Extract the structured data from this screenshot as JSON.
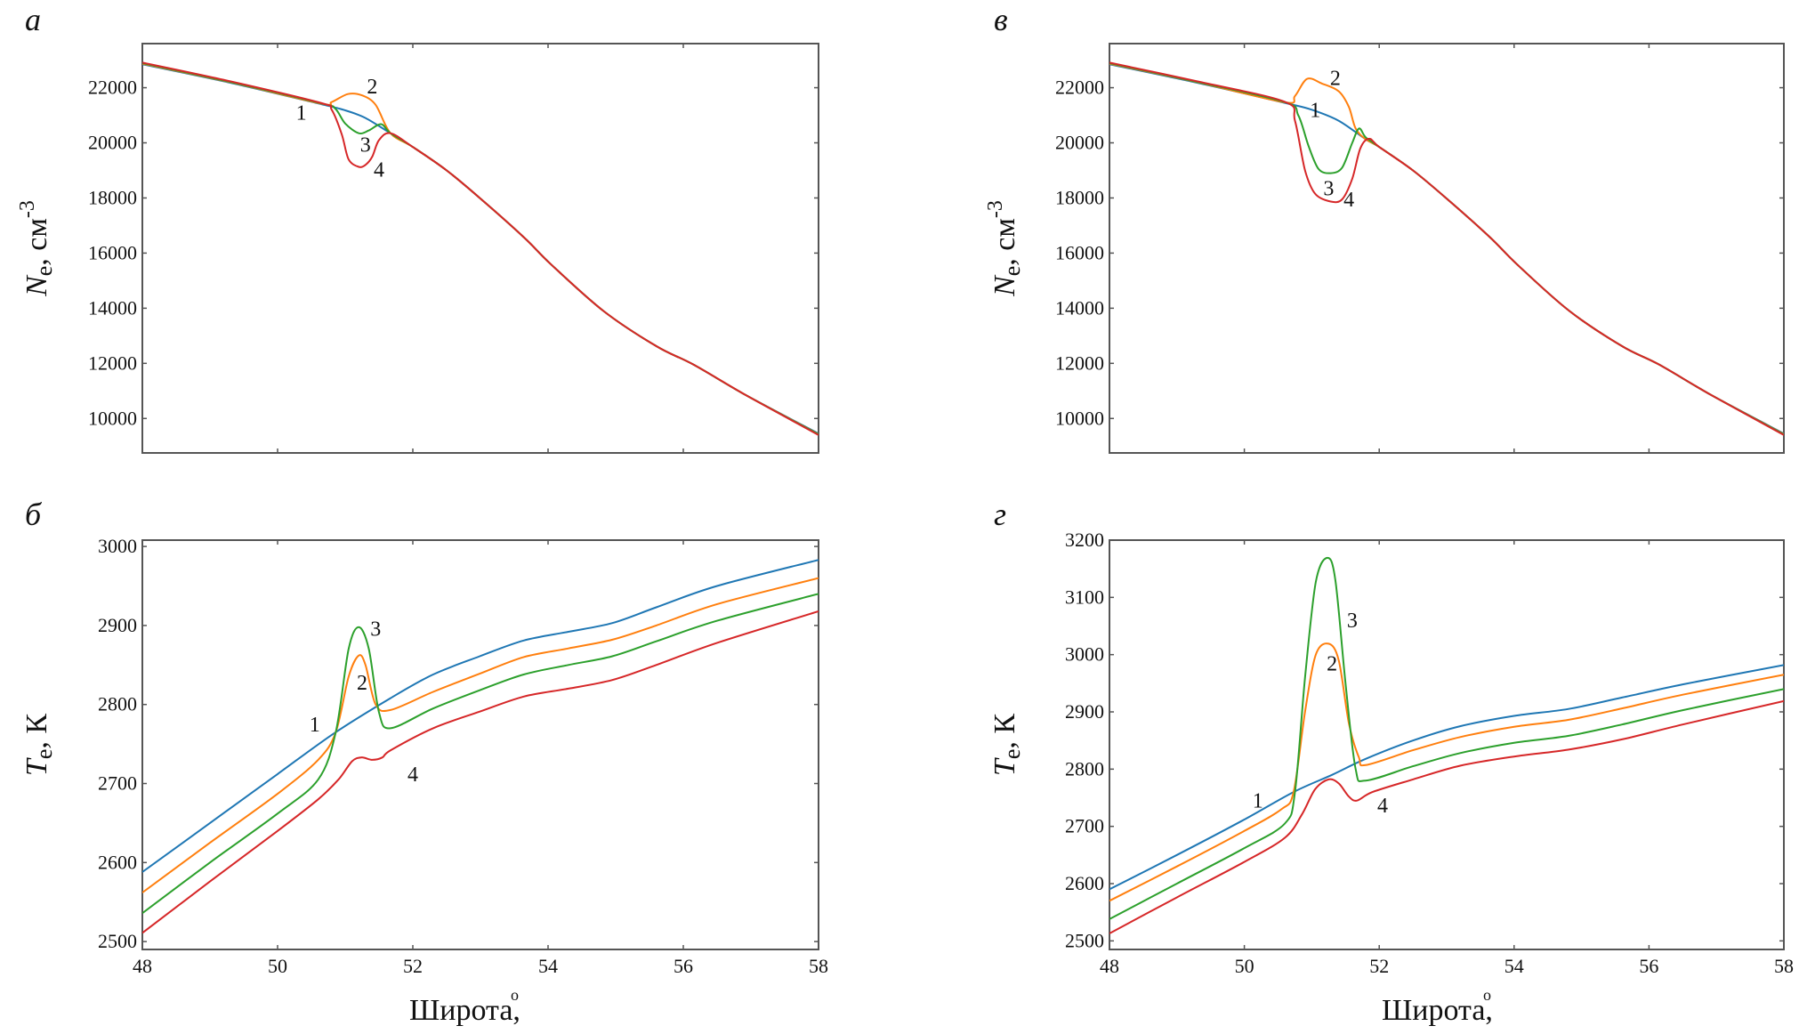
{
  "figure": {
    "xlabel_text": "Широта,",
    "xlabel_degree": "o"
  },
  "series_colors": {
    "1": "#1f77b4",
    "2": "#ff7f0e",
    "3": "#2ca02c",
    "4": "#d62728"
  },
  "chart_data": [
    {
      "id": "a",
      "panel_letter": "а",
      "type": "line",
      "title": "",
      "xlabel": "",
      "ylabel_symbol": "N",
      "ylabel_sub": "e",
      "ylabel_unit": ", см",
      "ylabel_sup": "-3",
      "xlim": [
        48,
        58
      ],
      "ylim": [
        8750,
        23600
      ],
      "xticks": [
        48,
        50,
        52,
        54,
        56,
        58
      ],
      "xtick_labels_shown": false,
      "yticks": [
        10000,
        12000,
        14000,
        16000,
        18000,
        20000,
        22000
      ],
      "ytick_labels": [
        "10000",
        "12000",
        "14000",
        "16000",
        "18000",
        "20000",
        "22000"
      ],
      "grid": false,
      "series": [
        {
          "name": "1",
          "x": [
            48,
            49.3,
            50.65,
            51.0,
            51.3,
            51.67,
            52.0,
            52.5,
            52.99,
            53.64,
            54.04,
            54.82,
            55.61,
            56.14,
            56.93,
            58
          ],
          "y": [
            22850,
            22180,
            21400,
            21180,
            20900,
            20350,
            19850,
            19000,
            18000,
            16580,
            15600,
            13900,
            12610,
            11970,
            10840,
            9450
          ]
        },
        {
          "name": "2",
          "x": [
            48,
            49.3,
            50.65,
            50.8,
            51.04,
            51.25,
            51.45,
            51.67,
            52.0,
            52.5,
            52.99,
            53.64,
            54.04,
            54.82,
            55.61,
            56.14,
            56.93,
            58
          ],
          "y": [
            22870,
            22200,
            21420,
            21480,
            21770,
            21720,
            21380,
            20350,
            19850,
            19000,
            18000,
            16580,
            15600,
            13900,
            12610,
            11970,
            10840,
            9430
          ]
        },
        {
          "name": "3",
          "x": [
            48,
            49.3,
            50.65,
            50.85,
            51.0,
            51.2,
            51.35,
            51.53,
            51.67,
            52.0,
            52.5,
            52.99,
            53.64,
            54.04,
            54.82,
            55.61,
            56.14,
            56.93,
            58
          ],
          "y": [
            22890,
            22210,
            21430,
            21250,
            20700,
            20350,
            20450,
            20680,
            20350,
            19850,
            19000,
            18000,
            16580,
            15600,
            13900,
            12610,
            11970,
            10840,
            9420
          ]
        },
        {
          "name": "4",
          "x": [
            48,
            49.3,
            50.65,
            50.8,
            50.95,
            51.05,
            51.2,
            51.3,
            51.4,
            51.5,
            51.67,
            52.0,
            52.5,
            52.99,
            53.64,
            54.04,
            54.82,
            55.61,
            56.14,
            56.93,
            58
          ],
          "y": [
            22910,
            22230,
            21440,
            21200,
            20300,
            19400,
            19130,
            19200,
            19500,
            20100,
            20350,
            19850,
            19000,
            18000,
            16580,
            15600,
            13900,
            12610,
            11970,
            10840,
            9400
          ]
        }
      ],
      "annotations": [
        {
          "text": "1",
          "x": 50.35,
          "y": 21100
        },
        {
          "text": "2",
          "x": 51.4,
          "y": 22050
        },
        {
          "text": "3",
          "x": 51.3,
          "y": 19940
        },
        {
          "text": "4",
          "x": 51.5,
          "y": 19030
        }
      ]
    },
    {
      "id": "b",
      "panel_letter": "б",
      "type": "line",
      "title": "",
      "xlabel": "Широта, o",
      "ylabel_symbol": "T",
      "ylabel_sub": "e",
      "ylabel_unit": ", К",
      "ylabel_sup": "",
      "xlim": [
        48,
        58
      ],
      "ylim": [
        2490,
        3008
      ],
      "xticks": [
        48,
        50,
        52,
        54,
        56,
        58
      ],
      "xtick_labels": [
        "48",
        "50",
        "52",
        "54",
        "56",
        "58"
      ],
      "xtick_labels_shown": true,
      "yticks": [
        2500,
        2600,
        2700,
        2800,
        2900,
        3000
      ],
      "ytick_labels": [
        "2500",
        "2600",
        "2700",
        "2800",
        "2900",
        "3000"
      ],
      "grid": false,
      "series": [
        {
          "name": "1",
          "x": [
            48,
            49,
            50,
            50.86,
            51.67,
            52.3,
            52.99,
            53.64,
            54.3,
            54.95,
            55.6,
            56.5,
            58
          ],
          "y": [
            2588,
            2650,
            2712,
            2765,
            2808,
            2838,
            2861,
            2881,
            2892,
            2903,
            2923,
            2950,
            2983
          ]
        },
        {
          "name": "2",
          "x": [
            48,
            49,
            50,
            50.6,
            50.86,
            51.05,
            51.2,
            51.3,
            51.45,
            51.67,
            52.3,
            52.99,
            53.64,
            54.3,
            54.95,
            55.6,
            56.5,
            58
          ],
          "y": [
            2562,
            2625,
            2687,
            2730,
            2765,
            2835,
            2862,
            2850,
            2800,
            2793,
            2816,
            2839,
            2860,
            2871,
            2882,
            2900,
            2927,
            2960
          ]
        },
        {
          "name": "3",
          "x": [
            48,
            49,
            50,
            50.6,
            50.86,
            51.05,
            51.2,
            51.35,
            51.5,
            51.67,
            52.3,
            52.99,
            53.64,
            54.3,
            54.95,
            55.6,
            56.5,
            58
          ],
          "y": [
            2536,
            2600,
            2662,
            2705,
            2765,
            2870,
            2898,
            2870,
            2790,
            2770,
            2795,
            2818,
            2838,
            2850,
            2861,
            2880,
            2906,
            2940
          ]
        },
        {
          "name": "4",
          "x": [
            48,
            49,
            50,
            50.6,
            50.9,
            51.1,
            51.24,
            51.4,
            51.55,
            51.67,
            52.3,
            52.99,
            53.64,
            54.3,
            54.95,
            55.6,
            56.5,
            58
          ],
          "y": [
            2511,
            2576,
            2640,
            2680,
            2705,
            2728,
            2733,
            2730,
            2733,
            2742,
            2770,
            2791,
            2810,
            2820,
            2831,
            2850,
            2878,
            2918
          ]
        }
      ],
      "annotations": [
        {
          "text": "1",
          "x": 50.55,
          "y": 2775
        },
        {
          "text": "2",
          "x": 51.25,
          "y": 2828
        },
        {
          "text": "3",
          "x": 51.45,
          "y": 2896
        },
        {
          "text": "4",
          "x": 52.0,
          "y": 2712
        }
      ]
    },
    {
      "id": "v",
      "panel_letter": "в",
      "type": "line",
      "title": "",
      "xlabel": "",
      "ylabel_symbol": "N",
      "ylabel_sub": "e",
      "ylabel_unit": ", см",
      "ylabel_sup": "-3",
      "xlim": [
        48,
        58
      ],
      "ylim": [
        8750,
        23600
      ],
      "xticks": [
        48,
        50,
        52,
        54,
        56,
        58
      ],
      "xtick_labels_shown": false,
      "yticks": [
        10000,
        12000,
        14000,
        16000,
        18000,
        20000,
        22000
      ],
      "ytick_labels": [
        "10000",
        "12000",
        "14000",
        "16000",
        "18000",
        "20000",
        "22000"
      ],
      "grid": false,
      "series": [
        {
          "name": "1",
          "x": [
            48,
            49.3,
            50.6,
            51.0,
            51.4,
            51.8,
            52.0,
            52.5,
            52.99,
            53.64,
            54.04,
            54.82,
            55.61,
            56.14,
            56.93,
            58
          ],
          "y": [
            22850,
            22180,
            21450,
            21200,
            20800,
            20130,
            19850,
            19000,
            18000,
            16580,
            15600,
            13900,
            12610,
            11970,
            10840,
            9450
          ]
        },
        {
          "name": "2",
          "x": [
            48,
            49.3,
            50.6,
            50.75,
            50.93,
            51.15,
            51.4,
            51.55,
            51.65,
            51.8,
            52.0,
            52.5,
            52.99,
            53.64,
            54.04,
            54.82,
            55.61,
            56.14,
            56.93,
            58
          ],
          "y": [
            22870,
            22200,
            21470,
            21700,
            22320,
            22150,
            21870,
            21300,
            20520,
            20130,
            19850,
            19000,
            18000,
            16580,
            15600,
            13900,
            12610,
            11970,
            10840,
            9430
          ]
        },
        {
          "name": "3",
          "x": [
            48,
            49.3,
            50.6,
            50.8,
            50.95,
            51.1,
            51.28,
            51.45,
            51.6,
            51.7,
            51.8,
            52.0,
            52.5,
            52.99,
            53.64,
            54.04,
            54.82,
            55.61,
            56.14,
            56.93,
            58
          ],
          "y": [
            22890,
            22210,
            21480,
            21000,
            19900,
            19050,
            18900,
            19100,
            20000,
            20520,
            20200,
            19850,
            19000,
            18000,
            16580,
            15600,
            13900,
            12610,
            11970,
            10840,
            9420
          ]
        },
        {
          "name": "4",
          "x": [
            48,
            49.3,
            50.6,
            50.75,
            50.9,
            51.05,
            51.28,
            51.45,
            51.6,
            51.72,
            51.85,
            52.0,
            52.5,
            52.99,
            53.64,
            54.04,
            54.82,
            55.61,
            56.14,
            56.93,
            58
          ],
          "y": [
            22910,
            22230,
            21490,
            20800,
            19000,
            18150,
            17870,
            17950,
            18700,
            19800,
            20150,
            19850,
            19000,
            18000,
            16580,
            15600,
            13900,
            12610,
            11970,
            10840,
            9400
          ]
        }
      ],
      "annotations": [
        {
          "text": "1",
          "x": 51.05,
          "y": 21200
        },
        {
          "text": "2",
          "x": 51.35,
          "y": 22350
        },
        {
          "text": "3",
          "x": 51.25,
          "y": 18350
        },
        {
          "text": "4",
          "x": 51.55,
          "y": 17950
        }
      ]
    },
    {
      "id": "g",
      "panel_letter": "г",
      "type": "line",
      "title": "",
      "xlabel": "Широта, o",
      "ylabel_symbol": "T",
      "ylabel_sub": "e",
      "ylabel_unit": ", К",
      "ylabel_sup": "",
      "xlim": [
        48,
        58
      ],
      "ylim": [
        2485,
        3200
      ],
      "xticks": [
        48,
        50,
        52,
        54,
        56,
        58
      ],
      "xtick_labels": [
        "48",
        "50",
        "52",
        "54",
        "56",
        "58"
      ],
      "xtick_labels_shown": true,
      "yticks": [
        2500,
        2600,
        2700,
        2800,
        2900,
        3000,
        3100,
        3200
      ],
      "ytick_labels": [
        "2500",
        "2600",
        "2700",
        "2800",
        "2900",
        "3000",
        "3100",
        "3200"
      ],
      "grid": false,
      "series": [
        {
          "name": "1",
          "x": [
            48,
            49,
            50,
            50.73,
            51.3,
            51.8,
            52.5,
            53.2,
            54.0,
            54.8,
            55.6,
            56.5,
            58
          ],
          "y": [
            2590,
            2650,
            2712,
            2760,
            2790,
            2818,
            2850,
            2875,
            2893,
            2905,
            2925,
            2948,
            2982
          ]
        },
        {
          "name": "2",
          "x": [
            48,
            49,
            50,
            50.55,
            50.73,
            50.9,
            51.06,
            51.25,
            51.4,
            51.55,
            51.7,
            51.8,
            52.5,
            53.2,
            54.0,
            54.8,
            55.6,
            56.5,
            58
          ],
          "y": [
            2570,
            2630,
            2692,
            2730,
            2760,
            2900,
            3000,
            3019,
            2990,
            2880,
            2820,
            2807,
            2833,
            2856,
            2874,
            2886,
            2906,
            2930,
            2965
          ]
        },
        {
          "name": "3",
          "x": [
            48,
            49,
            50,
            50.6,
            50.75,
            50.9,
            51.06,
            51.23,
            51.35,
            51.5,
            51.65,
            51.8,
            52.5,
            53.2,
            54.0,
            54.8,
            55.6,
            56.5,
            58
          ],
          "y": [
            2538,
            2600,
            2662,
            2705,
            2760,
            2960,
            3127,
            3169,
            3130,
            2950,
            2800,
            2780,
            2805,
            2828,
            2846,
            2858,
            2878,
            2903,
            2940
          ]
        },
        {
          "name": "4",
          "x": [
            48,
            49,
            50,
            50.6,
            50.85,
            51.05,
            51.25,
            51.4,
            51.55,
            51.67,
            51.9,
            52.5,
            53.2,
            54.0,
            54.8,
            55.6,
            56.5,
            58
          ],
          "y": [
            2513,
            2576,
            2638,
            2680,
            2720,
            2765,
            2782,
            2775,
            2752,
            2745,
            2760,
            2782,
            2806,
            2822,
            2834,
            2852,
            2878,
            2919
          ]
        }
      ],
      "annotations": [
        {
          "text": "1",
          "x": 50.2,
          "y": 2745
        },
        {
          "text": "2",
          "x": 51.3,
          "y": 2985
        },
        {
          "text": "3",
          "x": 51.6,
          "y": 3060
        },
        {
          "text": "4",
          "x": 52.05,
          "y": 2737
        }
      ]
    }
  ]
}
